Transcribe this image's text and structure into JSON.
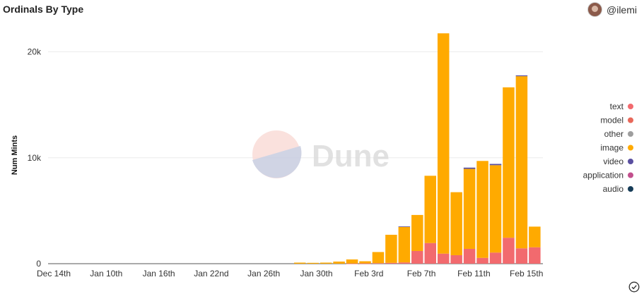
{
  "header": {
    "title": "Ordinals By Type",
    "username": "@ilemi"
  },
  "watermark": {
    "text": "Dune"
  },
  "colors": {
    "text": "#f26a6e",
    "model": "#e8685a",
    "other": "#9e9e9e",
    "image": "#ffaa00",
    "video": "#5a4fa0",
    "application": "#c2508d",
    "audio": "#163c58"
  },
  "chart_data": {
    "type": "bar",
    "stacked": true,
    "ylabel": "Num Mints",
    "ylim": [
      0,
      22500
    ],
    "yticks": [
      0,
      10000,
      20000
    ],
    "ytick_labels": [
      "0",
      "10k",
      "20k"
    ],
    "xticks": [
      "Dec 14th",
      "Jan 10th",
      "Jan 16th",
      "Jan 22nd",
      "Jan 26th",
      "Jan 30th",
      "Feb 3rd",
      "Feb 7th",
      "Feb 11th",
      "Feb 15th"
    ],
    "legend_position": "right",
    "legend": [
      "text",
      "model",
      "other",
      "image",
      "video",
      "application",
      "audio"
    ],
    "categories": [
      "Jan 29",
      "Jan 30",
      "Jan 31",
      "Feb 1",
      "Feb 2",
      "Feb 3",
      "Feb 4",
      "Feb 5",
      "Feb 6",
      "Feb 7",
      "Feb 8",
      "Feb 9",
      "Feb 10",
      "Feb 11",
      "Feb 12",
      "Feb 13",
      "Feb 14",
      "Feb 15",
      "Feb 16"
    ],
    "series": [
      {
        "name": "text",
        "values": [
          0,
          0,
          0,
          0,
          20,
          30,
          50,
          80,
          120,
          1200,
          1950,
          950,
          800,
          1400,
          550,
          1050,
          2450,
          1450,
          1550
        ]
      },
      {
        "name": "image",
        "values": [
          100,
          80,
          100,
          200,
          380,
          200,
          1050,
          2650,
          3350,
          3400,
          6350,
          20800,
          5950,
          7550,
          9150,
          8250,
          14200,
          16250,
          1950
        ]
      },
      {
        "name": "video",
        "values": [
          0,
          0,
          0,
          0,
          0,
          0,
          0,
          0,
          50,
          0,
          0,
          0,
          0,
          120,
          0,
          120,
          0,
          80,
          0
        ]
      }
    ]
  }
}
